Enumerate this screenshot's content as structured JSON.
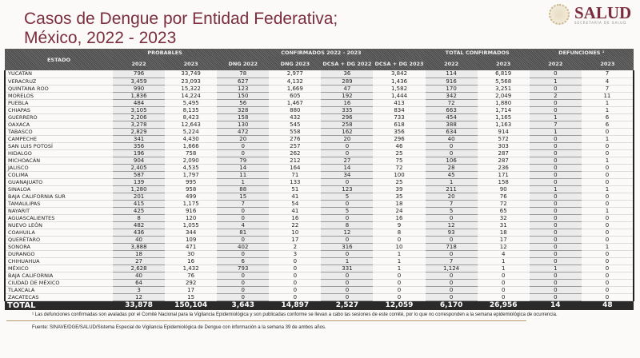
{
  "title": {
    "line1": "Casos de Dengue por Entidad Federativa;",
    "line2": "México, 2022 - 2023"
  },
  "logo": {
    "name": "SALUD",
    "sub": "SECRETARÍA DE SALUD"
  },
  "header": {
    "estado": "ESTADO",
    "probables": "PROBABLES",
    "confirmados": "CONFIRMADOS 2022 - 2023",
    "total": "TOTAL CONFIRMADOS",
    "defunciones": "DEFUNCIONES ¹",
    "cols": [
      "2022",
      "2023",
      "DNG 2022",
      "DNG 2023",
      "DCSA + DG 2022",
      "DCSA + DG 2023",
      "2022",
      "2023",
      "2022",
      "2023"
    ]
  },
  "rows": [
    [
      "YUCATÁN",
      "796",
      "33,749",
      "78",
      "2,977",
      "36",
      "3,842",
      "114",
      "6,819",
      "0",
      "7"
    ],
    [
      "VERACRUZ",
      "3,459",
      "23,093",
      "627",
      "4,132",
      "289",
      "1,436",
      "916",
      "5,568",
      "1",
      "4"
    ],
    [
      "QUINTANA ROO",
      "990",
      "15,322",
      "123",
      "1,669",
      "47",
      "1,582",
      "170",
      "3,251",
      "0",
      "7"
    ],
    [
      "MORELOS",
      "1,836",
      "14,224",
      "150",
      "605",
      "192",
      "1,444",
      "342",
      "2,049",
      "2",
      "11"
    ],
    [
      "PUEBLA",
      "484",
      "5,495",
      "56",
      "1,467",
      "16",
      "413",
      "72",
      "1,880",
      "0",
      "1"
    ],
    [
      "CHIAPAS",
      "3,105",
      "8,135",
      "328",
      "880",
      "335",
      "834",
      "663",
      "1,714",
      "0",
      "1"
    ],
    [
      "GUERRERO",
      "2,206",
      "8,423",
      "158",
      "432",
      "296",
      "733",
      "454",
      "1,165",
      "1",
      "6"
    ],
    [
      "OAXACA",
      "3,278",
      "12,643",
      "130",
      "545",
      "258",
      "618",
      "388",
      "1,163",
      "7",
      "6"
    ],
    [
      "TABASCO",
      "2,829",
      "5,224",
      "472",
      "558",
      "162",
      "356",
      "634",
      "914",
      "1",
      "0"
    ],
    [
      "CAMPECHE",
      "341",
      "4,430",
      "20",
      "276",
      "20",
      "296",
      "40",
      "572",
      "0",
      "1"
    ],
    [
      "SAN LUIS POTOSÍ",
      "356",
      "1,666",
      "0",
      "257",
      "0",
      "46",
      "0",
      "303",
      "0",
      "0"
    ],
    [
      "HIDALGO",
      "196",
      "758",
      "0",
      "262",
      "0",
      "25",
      "0",
      "287",
      "0",
      "0"
    ],
    [
      "MICHOACÁN",
      "904",
      "2,090",
      "79",
      "212",
      "27",
      "75",
      "106",
      "287",
      "0",
      "1"
    ],
    [
      "JALISCO",
      "2,405",
      "4,535",
      "14",
      "164",
      "14",
      "72",
      "28",
      "236",
      "0",
      "0"
    ],
    [
      "COLIMA",
      "587",
      "1,797",
      "11",
      "71",
      "34",
      "100",
      "45",
      "171",
      "0",
      "0"
    ],
    [
      "GUANAJUATO",
      "139",
      "995",
      "1",
      "133",
      "0",
      "25",
      "1",
      "158",
      "0",
      "0"
    ],
    [
      "SINALOA",
      "1,280",
      "958",
      "88",
      "51",
      "123",
      "39",
      "211",
      "90",
      "1",
      "1"
    ],
    [
      "BAJA CALIFORNIA SUR",
      "201",
      "499",
      "15",
      "41",
      "5",
      "35",
      "20",
      "76",
      "0",
      "0"
    ],
    [
      "TAMAULIPAS",
      "415",
      "1,175",
      "7",
      "54",
      "0",
      "18",
      "7",
      "72",
      "0",
      "0"
    ],
    [
      "NAYARIT",
      "425",
      "916",
      "0",
      "41",
      "5",
      "24",
      "5",
      "65",
      "0",
      "1"
    ],
    [
      "AGUASCALIENTES",
      "8",
      "120",
      "0",
      "16",
      "0",
      "16",
      "0",
      "32",
      "0",
      "0"
    ],
    [
      "NUEVO LEÓN",
      "482",
      "1,055",
      "4",
      "22",
      "8",
      "9",
      "12",
      "31",
      "0",
      "0"
    ],
    [
      "COAHUILA",
      "436",
      "344",
      "81",
      "10",
      "12",
      "8",
      "93",
      "18",
      "0",
      "0"
    ],
    [
      "QUERÉTARO",
      "40",
      "109",
      "0",
      "17",
      "0",
      "0",
      "0",
      "17",
      "0",
      "0"
    ],
    [
      "SONORA",
      "3,888",
      "471",
      "402",
      "2",
      "316",
      "10",
      "718",
      "12",
      "0",
      "1"
    ],
    [
      "DURANGO",
      "18",
      "30",
      "0",
      "3",
      "0",
      "1",
      "0",
      "4",
      "0",
      "0"
    ],
    [
      "CHIHUAHUA",
      "27",
      "16",
      "6",
      "0",
      "1",
      "1",
      "7",
      "1",
      "0",
      "0"
    ],
    [
      "MÉXICO",
      "2,628",
      "1,432",
      "793",
      "0",
      "331",
      "1",
      "1,124",
      "1",
      "1",
      "0"
    ],
    [
      "BAJA CALIFORNIA",
      "40",
      "76",
      "0",
      "0",
      "0",
      "0",
      "0",
      "0",
      "0",
      "0"
    ],
    [
      "CIUDAD DE MÉXICO",
      "64",
      "292",
      "0",
      "0",
      "0",
      "0",
      "0",
      "0",
      "0",
      "0"
    ],
    [
      "TLAXCALA",
      "3",
      "17",
      "0",
      "0",
      "0",
      "0",
      "0",
      "0",
      "0",
      "0"
    ],
    [
      "ZACATECAS",
      "12",
      "15",
      "0",
      "0",
      "0",
      "0",
      "0",
      "0",
      "0",
      "0"
    ]
  ],
  "total": [
    "TOTAL",
    "33,878",
    "150,104",
    "3,643",
    "14,897",
    "2,527",
    "12,059",
    "6,170",
    "26,956",
    "14",
    "48"
  ],
  "footnote": "¹ Las defunciones confirmadas son avaladas por el Comité Nacional para la Vigilancia Epidemiológica y son publicadas conforme se llevan a cabo las sesiones de este comité, por lo que no corresponden a la semana epidemiológica de ocurrencia.",
  "source": "Fuente: SINAVE/DGE/SALUD/Sistema Especial de Vigilancia Epidemiológica de Dengue con información a la semana 39 de ambos años.",
  "colors": {
    "title": "#7b2d3e",
    "header": "#555555",
    "total": "#2a2a2a"
  }
}
